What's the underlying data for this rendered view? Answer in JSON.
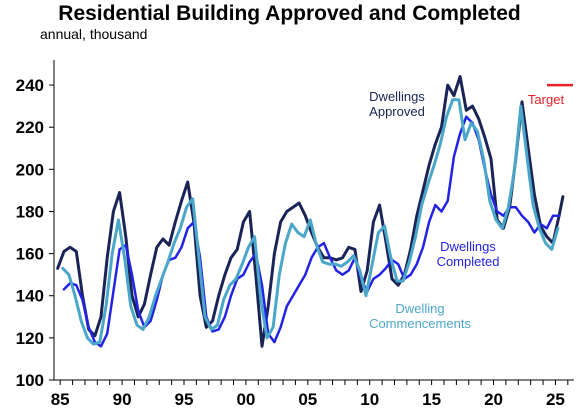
{
  "chart_data": {
    "type": "line",
    "title": "Residential Building Approved and Completed",
    "subtitle": "annual, thousand",
    "xlabel": "",
    "ylabel": "",
    "xlim": [
      1984.5,
      2026.5
    ],
    "ylim": [
      100,
      250
    ],
    "y_ticks": [
      100,
      120,
      140,
      160,
      180,
      200,
      220,
      240
    ],
    "x_ticks": [
      {
        "value": 1985,
        "label": "85"
      },
      {
        "value": 1990,
        "label": "90"
      },
      {
        "value": 1995,
        "label": "95"
      },
      {
        "value": 2000,
        "label": "00"
      },
      {
        "value": 2005,
        "label": "05"
      },
      {
        "value": 2010,
        "label": "10"
      },
      {
        "value": 2015,
        "label": "15"
      },
      {
        "value": 2020,
        "label": "20"
      },
      {
        "value": 2025,
        "label": "25"
      }
    ],
    "grid": false,
    "series": [
      {
        "name": "Dwellings Approved",
        "label_lines": [
          "Dwellings",
          "Approved"
        ],
        "color": "#1a2456",
        "x": [
          1984.8,
          1985.3,
          1985.8,
          1986.3,
          1986.8,
          1987.3,
          1987.8,
          1988.3,
          1988.8,
          1989.3,
          1989.8,
          1990.3,
          1990.8,
          1991.3,
          1991.8,
          1992.3,
          1992.8,
          1993.3,
          1993.8,
          1994.3,
          1994.8,
          1995.3,
          1995.8,
          1996.3,
          1996.8,
          1997.3,
          1997.8,
          1998.3,
          1998.8,
          1999.3,
          1999.8,
          2000.3,
          2000.8,
          2001.3,
          2001.8,
          2002.3,
          2002.8,
          2003.3,
          2003.8,
          2004.3,
          2004.8,
          2005.3,
          2005.8,
          2006.3,
          2006.8,
          2007.3,
          2007.8,
          2008.3,
          2008.8,
          2009.3,
          2009.8,
          2010.3,
          2010.8,
          2011.3,
          2011.8,
          2012.3,
          2012.8,
          2013.3,
          2013.8,
          2014.3,
          2014.8,
          2015.3,
          2015.8,
          2016.3,
          2016.8,
          2017.3,
          2017.8,
          2018.3,
          2018.8,
          2019.3,
          2019.8,
          2020.3,
          2020.8,
          2021.3,
          2021.8,
          2022.3,
          2022.8,
          2023.3,
          2023.8,
          2024.3,
          2024.8,
          2025.3,
          2025.6
        ],
        "values": [
          153,
          161,
          163,
          161,
          140,
          124,
          121,
          130,
          158,
          180,
          189,
          168,
          140,
          130,
          136,
          150,
          163,
          167,
          164,
          175,
          185,
          194,
          175,
          140,
          125,
          128,
          140,
          150,
          158,
          162,
          175,
          180,
          150,
          116,
          135,
          160,
          175,
          180,
          182,
          184,
          178,
          170,
          163,
          158,
          158,
          157,
          158,
          163,
          162,
          142,
          152,
          175,
          183,
          166,
          148,
          145,
          150,
          162,
          178,
          190,
          202,
          212,
          220,
          240,
          235,
          244,
          228,
          230,
          224,
          215,
          205,
          176,
          172,
          182,
          205,
          232,
          210,
          188,
          173,
          168,
          165,
          178,
          187
        ]
      },
      {
        "name": "Dwellings Completed",
        "label_lines": [
          "Dwellings",
          "Completed"
        ],
        "color": "#2323e6",
        "x": [
          1985.3,
          1985.8,
          1986.3,
          1986.8,
          1987.3,
          1987.8,
          1988.3,
          1988.8,
          1989.3,
          1989.8,
          1990.3,
          1990.8,
          1991.3,
          1991.8,
          1992.3,
          1992.8,
          1993.3,
          1993.8,
          1994.3,
          1994.8,
          1995.3,
          1995.8,
          1996.3,
          1996.8,
          1997.3,
          1997.8,
          1998.3,
          1998.8,
          1999.3,
          1999.8,
          2000.3,
          2000.8,
          2001.3,
          2001.8,
          2002.3,
          2002.8,
          2003.3,
          2003.8,
          2004.3,
          2004.8,
          2005.3,
          2005.8,
          2006.3,
          2006.8,
          2007.3,
          2007.8,
          2008.3,
          2008.8,
          2009.3,
          2009.8,
          2010.3,
          2010.8,
          2011.3,
          2011.8,
          2012.3,
          2012.8,
          2013.3,
          2013.8,
          2014.3,
          2014.8,
          2015.3,
          2015.8,
          2016.3,
          2016.8,
          2017.3,
          2017.8,
          2018.3,
          2018.8,
          2019.3,
          2019.8,
          2020.3,
          2020.8,
          2021.3,
          2021.8,
          2022.3,
          2022.8,
          2023.3,
          2023.8,
          2024.3,
          2024.8,
          2025.3
        ],
        "values": [
          143,
          146,
          145,
          138,
          125,
          118,
          116,
          122,
          142,
          162,
          164,
          150,
          133,
          125,
          128,
          138,
          150,
          157,
          158,
          163,
          172,
          175,
          158,
          130,
          123,
          124,
          130,
          140,
          148,
          150,
          156,
          160,
          145,
          122,
          118,
          125,
          135,
          140,
          145,
          150,
          158,
          163,
          165,
          158,
          152,
          150,
          152,
          158,
          148,
          142,
          148,
          150,
          153,
          157,
          155,
          148,
          150,
          155,
          163,
          175,
          183,
          180,
          185,
          206,
          217,
          225,
          222,
          214,
          200,
          188,
          180,
          178,
          182,
          182,
          178,
          175,
          170,
          174,
          172,
          178,
          178
        ]
      },
      {
        "name": "Dwelling Commencements",
        "label_lines": [
          "Dwelling",
          "Commencements"
        ],
        "color": "#4ba7c9",
        "x": [
          1985.2,
          1985.7,
          1986.2,
          1986.7,
          1987.2,
          1987.7,
          1988.2,
          1988.7,
          1989.2,
          1989.7,
          1990.2,
          1990.7,
          1991.2,
          1991.7,
          1992.2,
          1992.7,
          1993.2,
          1993.7,
          1994.2,
          1994.7,
          1995.2,
          1995.7,
          1996.2,
          1996.7,
          1997.2,
          1997.7,
          1998.2,
          1998.7,
          1999.2,
          1999.7,
          2000.2,
          2000.7,
          2001.2,
          2001.7,
          2002.2,
          2002.7,
          2003.2,
          2003.7,
          2004.2,
          2004.7,
          2005.2,
          2005.7,
          2006.2,
          2006.7,
          2007.2,
          2007.7,
          2008.2,
          2008.7,
          2009.2,
          2009.7,
          2010.2,
          2010.7,
          2011.2,
          2011.7,
          2012.2,
          2012.7,
          2013.2,
          2013.7,
          2014.2,
          2014.7,
          2015.2,
          2015.7,
          2016.2,
          2016.7,
          2017.2,
          2017.7,
          2018.2,
          2018.7,
          2019.2,
          2019.7,
          2020.2,
          2020.7,
          2021.2,
          2021.7,
          2022.2,
          2022.7,
          2023.2,
          2023.7,
          2024.2,
          2024.7,
          2025.2
        ],
        "values": [
          153,
          150,
          140,
          128,
          120,
          117,
          118,
          135,
          160,
          176,
          158,
          135,
          126,
          124,
          130,
          140,
          148,
          156,
          165,
          172,
          182,
          186,
          158,
          130,
          124,
          126,
          138,
          145,
          148,
          155,
          163,
          168,
          138,
          120,
          125,
          150,
          165,
          174,
          170,
          168,
          176,
          164,
          156,
          155,
          155,
          154,
          156,
          159,
          152,
          140,
          155,
          170,
          173,
          158,
          147,
          147,
          156,
          168,
          183,
          193,
          202,
          212,
          225,
          233,
          233,
          214,
          222,
          218,
          205,
          185,
          176,
          172,
          182,
          200,
          230,
          206,
          183,
          172,
          165,
          162,
          172
        ]
      }
    ],
    "annotations": [
      {
        "text": "Target",
        "value": 240,
        "color": "#e8212b"
      }
    ]
  }
}
